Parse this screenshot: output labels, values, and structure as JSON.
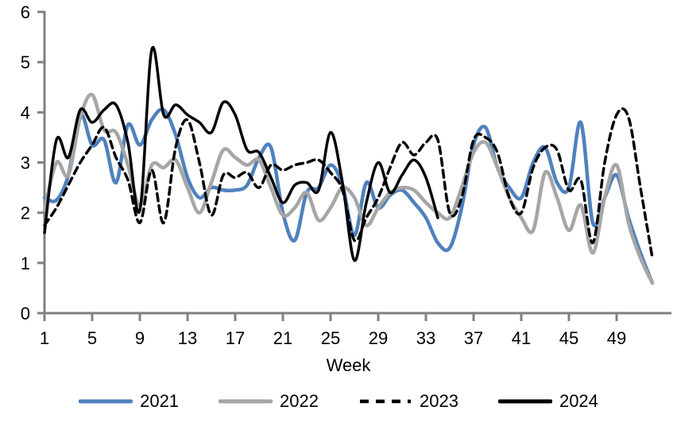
{
  "chart_data": {
    "type": "line",
    "title": "",
    "xlabel": "Week",
    "ylabel": "",
    "xlim": [
      1,
      52
    ],
    "ylim": [
      0,
      6
    ],
    "grid": false,
    "smoothed": true,
    "legend_position": "bottom",
    "axis_color": "#808080",
    "text_color": "#000000",
    "background_color": "#ffffff",
    "x_ticks": [
      1,
      5,
      9,
      13,
      17,
      21,
      25,
      29,
      33,
      37,
      41,
      45,
      49
    ],
    "y_ticks": [
      0,
      1,
      2,
      3,
      4,
      5,
      6
    ],
    "x": [
      1,
      2,
      3,
      4,
      5,
      6,
      7,
      8,
      9,
      10,
      11,
      12,
      13,
      14,
      15,
      16,
      17,
      18,
      19,
      20,
      21,
      22,
      23,
      24,
      25,
      26,
      27,
      28,
      29,
      30,
      31,
      32,
      33,
      34,
      35,
      36,
      37,
      38,
      39,
      40,
      41,
      42,
      43,
      44,
      45,
      46,
      47,
      48,
      49,
      50,
      51,
      52
    ],
    "series": [
      {
        "name": "2021",
        "color": "#4F81BD",
        "style": "solid",
        "line_width": 4.5,
        "values": [
          2.3,
          2.25,
          2.75,
          3.95,
          3.35,
          3.45,
          2.6,
          3.75,
          3.35,
          3.85,
          4.05,
          3.55,
          2.7,
          2.3,
          2.5,
          2.45,
          2.45,
          2.55,
          3.1,
          3.3,
          2.0,
          1.45,
          2.4,
          2.5,
          2.95,
          2.55,
          1.55,
          2.6,
          2.1,
          2.35,
          2.45,
          2.2,
          1.9,
          1.4,
          1.3,
          2.1,
          3.35,
          3.7,
          2.9,
          2.5,
          2.3,
          3.0,
          3.3,
          2.6,
          2.5,
          3.8,
          1.8,
          2.3,
          2.75,
          1.9,
          1.2,
          0.6
        ]
      },
      {
        "name": "2022",
        "color": "#A6A6A6",
        "style": "solid",
        "line_width": 4.5,
        "values": [
          2.05,
          3.0,
          2.75,
          3.9,
          4.35,
          3.65,
          3.6,
          2.95,
          2.15,
          2.95,
          2.9,
          3.05,
          2.5,
          2.0,
          2.6,
          3.25,
          3.1,
          2.95,
          3.05,
          2.5,
          1.95,
          2.1,
          2.4,
          1.85,
          2.1,
          2.5,
          2.3,
          1.75,
          2.1,
          2.4,
          2.5,
          2.45,
          2.2,
          2.0,
          1.9,
          2.5,
          3.2,
          3.4,
          2.9,
          2.3,
          1.9,
          1.65,
          2.8,
          2.3,
          1.65,
          2.15,
          1.2,
          2.3,
          2.95,
          1.8,
          1.1,
          0.6
        ]
      },
      {
        "name": "2023",
        "color": "#000000",
        "style": "dashed",
        "line_width": 3.5,
        "values": [
          1.75,
          2.1,
          2.55,
          3.0,
          3.35,
          3.7,
          3.1,
          2.65,
          1.8,
          2.85,
          1.8,
          3.3,
          3.85,
          3.0,
          1.95,
          2.75,
          2.7,
          2.8,
          2.5,
          2.95,
          2.85,
          2.95,
          3.0,
          3.05,
          2.8,
          2.45,
          1.45,
          1.9,
          2.3,
          2.9,
          3.4,
          3.15,
          3.4,
          3.45,
          2.0,
          2.3,
          3.45,
          3.5,
          3.2,
          2.3,
          2.0,
          2.9,
          3.3,
          3.25,
          2.45,
          2.65,
          1.4,
          3.0,
          3.95,
          3.9,
          2.5,
          1.1
        ]
      },
      {
        "name": "2024",
        "color": "#000000",
        "style": "solid",
        "line_width": 3.5,
        "values": [
          1.6,
          3.45,
          3.1,
          4.05,
          3.8,
          4.05,
          4.15,
          3.4,
          2.05,
          5.25,
          3.95,
          4.15,
          3.95,
          3.8,
          3.6,
          4.2,
          3.95,
          3.25,
          3.2,
          2.7,
          2.2,
          2.55,
          2.6,
          2.45,
          3.6,
          2.6,
          1.05,
          2.2,
          3.0,
          2.4,
          2.75,
          3.05,
          2.7,
          1.9
        ]
      }
    ]
  }
}
